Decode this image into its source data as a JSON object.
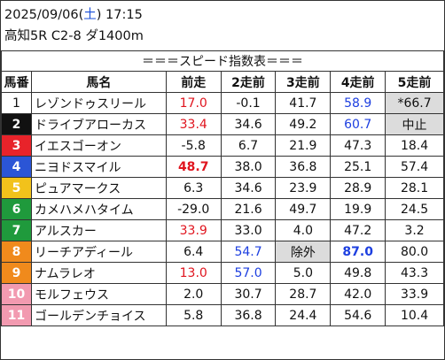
{
  "header": {
    "date": "2025/09/06",
    "weekday": "土",
    "time": "17:15",
    "race_info": "高知5R C2-8 ダ1400m"
  },
  "table": {
    "title": "＝＝＝スピード指数表＝＝＝",
    "columns": [
      "馬番",
      "馬名",
      "前走",
      "2走前",
      "3走前",
      "4走前",
      "5走前"
    ],
    "rows": [
      {
        "num": "1",
        "name": "レゾンドゥスリール",
        "vals": [
          "17.0",
          "-0.1",
          "41.7",
          "58.9",
          "*66.7"
        ],
        "num_bg": "#ffffff",
        "num_fg": "#111111"
      },
      {
        "num": "2",
        "name": "ドライブアローカス",
        "vals": [
          "33.4",
          "34.6",
          "49.2",
          "60.7",
          "中止"
        ],
        "num_bg": "#111111",
        "num_fg": "#ffffff"
      },
      {
        "num": "3",
        "name": "イエスゴーオン",
        "vals": [
          "-5.8",
          "6.7",
          "21.9",
          "47.3",
          "18.4"
        ],
        "num_bg": "#e8232a",
        "num_fg": "#ffffff"
      },
      {
        "num": "4",
        "name": "ニヨドスマイル",
        "vals": [
          "48.7",
          "38.0",
          "36.8",
          "25.1",
          "57.4"
        ],
        "num_bg": "#2b55d6",
        "num_fg": "#ffffff"
      },
      {
        "num": "5",
        "name": "ピュアマークス",
        "vals": [
          "6.3",
          "34.6",
          "23.9",
          "28.9",
          "28.1"
        ],
        "num_bg": "#f2c21b",
        "num_fg": "#ffffff"
      },
      {
        "num": "6",
        "name": "カメハメハタイム",
        "vals": [
          "-29.0",
          "21.6",
          "49.7",
          "19.9",
          "24.5"
        ],
        "num_bg": "#1f9a3c",
        "num_fg": "#ffffff"
      },
      {
        "num": "7",
        "name": "アルスカー",
        "vals": [
          "33.9",
          "33.0",
          "4.0",
          "47.2",
          "3.2"
        ],
        "num_bg": "#1f9a3c",
        "num_fg": "#ffffff"
      },
      {
        "num": "8",
        "name": "リーチアディール",
        "vals": [
          "6.4",
          "54.7",
          "除外",
          "87.0",
          "80.0"
        ],
        "num_bg": "#f08a1c",
        "num_fg": "#ffffff"
      },
      {
        "num": "9",
        "name": "ナムラレオ",
        "vals": [
          "13.0",
          "57.0",
          "5.0",
          "49.8",
          "43.3"
        ],
        "num_bg": "#f08a1c",
        "num_fg": "#ffffff"
      },
      {
        "num": "10",
        "name": "モルフェウス",
        "vals": [
          "2.0",
          "30.7",
          "28.7",
          "42.0",
          "33.9"
        ],
        "num_bg": "#f29ab0",
        "num_fg": "#ffffff"
      },
      {
        "num": "11",
        "name": "ゴールデンチョイス",
        "vals": [
          "5.8",
          "36.8",
          "24.4",
          "54.6",
          "10.4"
        ],
        "num_bg": "#f29ab0",
        "num_fg": "#ffffff"
      }
    ],
    "highlights": {
      "red_values": [
        [
          0,
          0
        ],
        [
          1,
          0
        ],
        [
          6,
          0
        ],
        [
          8,
          0
        ]
      ],
      "bold_red_values": [
        [
          3,
          0
        ]
      ],
      "blue_values": [
        [
          0,
          3
        ],
        [
          1,
          3
        ],
        [
          7,
          1
        ],
        [
          8,
          1
        ]
      ],
      "bold_blue_values": [
        [
          7,
          3
        ]
      ],
      "gray_cells": [
        [
          0,
          4
        ],
        [
          1,
          4
        ],
        [
          7,
          2
        ]
      ],
      "red_color": "#e0141e",
      "blue_color": "#1d3fe0",
      "gray_color": "#dcdcdc"
    }
  }
}
